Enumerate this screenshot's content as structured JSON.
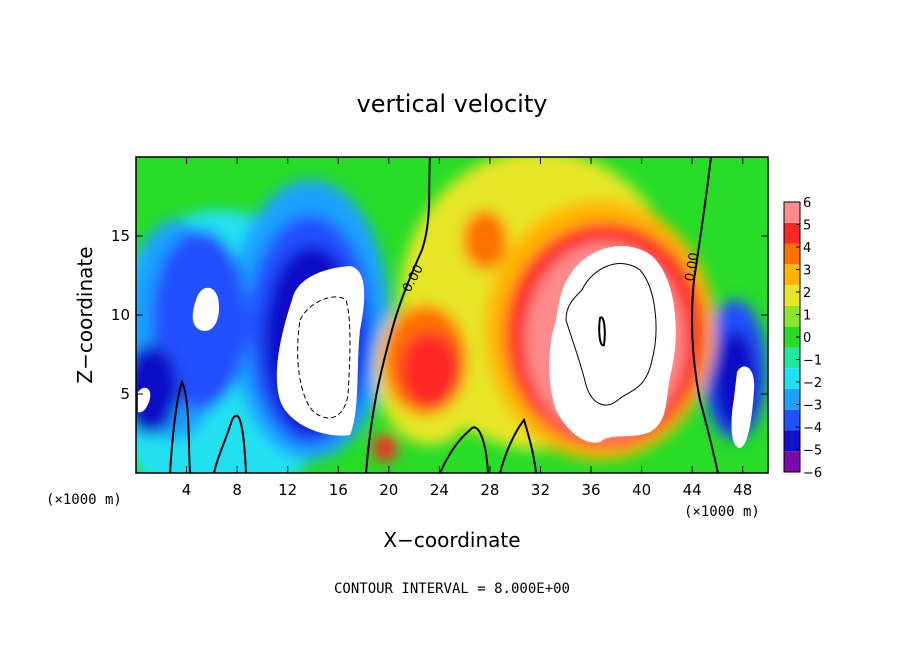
{
  "chart_data": {
    "type": "heatmap",
    "title": "vertical velocity",
    "xlabel": "X−coordinate",
    "ylabel": "Z−coordinate",
    "x_unit_left": "(×1000 m)",
    "x_unit_right": "(×1000 m)",
    "footer": "CONTOUR INTERVAL = 8.000E+00",
    "xlim": [
      0,
      50
    ],
    "ylim": [
      0,
      20
    ],
    "x_ticks": [
      4,
      8,
      12,
      16,
      20,
      24,
      28,
      32,
      36,
      40,
      44,
      48
    ],
    "x_tick_labels": [
      "4",
      "8",
      "12",
      "16",
      "20",
      "24",
      "28",
      "32",
      "36",
      "40",
      "44",
      "48"
    ],
    "y_ticks": [
      5,
      10,
      15
    ],
    "y_tick_labels": [
      "5",
      "10",
      "15"
    ],
    "contour_labels": [
      {
        "text": "0.00",
        "x": 22.2,
        "y": 12.2,
        "angle": -62
      },
      {
        "text": "0.00",
        "x": 44.3,
        "y": 13.0,
        "angle": -80
      }
    ],
    "colorbar": {
      "levels": [
        -6,
        -5,
        -4,
        -3,
        -2,
        -1,
        0,
        1,
        2,
        3,
        4,
        5,
        6
      ],
      "labels": [
        "6",
        "5",
        "4",
        "3",
        "2",
        "1",
        "0",
        "−1",
        "−2",
        "−3",
        "−4",
        "−5",
        "−6"
      ],
      "colors": [
        "#7a0ab0",
        "#1010c8",
        "#2050ff",
        "#1ea0ff",
        "#20e0f0",
        "#20e6a0",
        "#28dc28",
        "#8ce628",
        "#e6e628",
        "#ffb400",
        "#ff7000",
        "#ff2828",
        "#ff8c8c"
      ],
      "saturated_color": "#ffffff"
    },
    "features": [
      {
        "x": 15,
        "z": 9.0,
        "value": -11,
        "description": "strong downdraft core"
      },
      {
        "x": 6,
        "z": 10.0,
        "value": -8,
        "description": "downdraft"
      },
      {
        "x": 1.5,
        "z": 5.0,
        "value": -6,
        "description": "downdraft"
      },
      {
        "x": 47,
        "z": 5.0,
        "value": -8,
        "description": "downdraft"
      },
      {
        "x": 37,
        "z": 9.0,
        "value": 14,
        "description": "strong updraft core"
      },
      {
        "x": 24,
        "z": 6.0,
        "value": 4,
        "description": "updraft"
      },
      {
        "x": 27,
        "z": 15.0,
        "value": 3,
        "description": "updraft"
      }
    ]
  }
}
